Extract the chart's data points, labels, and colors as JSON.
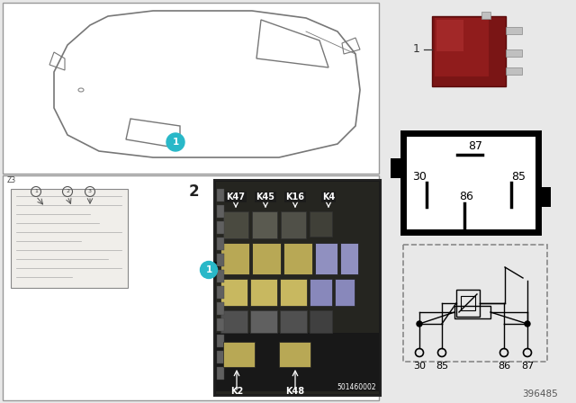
{
  "bg_color": "#e8e8e8",
  "white": "#ffffff",
  "black": "#000000",
  "teal": "#29b8c8",
  "relay_color": "#8b2020",
  "part_number": "396485",
  "image_code": "501460002",
  "pins": [
    "30",
    "85",
    "86",
    "87"
  ]
}
